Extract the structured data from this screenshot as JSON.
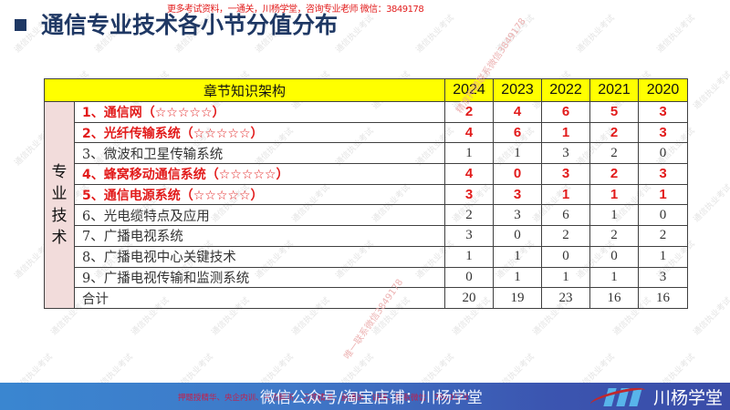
{
  "promo_banner_top": "更多考试资料，一通关，川杨学堂，咨询专业老师 微信：3849178",
  "slide": {
    "title": "通信专业技术各小节分值分布"
  },
  "table": {
    "header_chapter": "章节知识架构",
    "years": [
      "2024",
      "2023",
      "2022",
      "2021",
      "2020"
    ],
    "category_label": "专\n业\n技\n术",
    "rows": [
      {
        "chapter": "1、通信网（☆☆☆☆☆）",
        "highlight": true,
        "values": [
          "2",
          "4",
          "6",
          "5",
          "3"
        ]
      },
      {
        "chapter": "2、光纤传输系统（☆☆☆☆☆）",
        "highlight": true,
        "values": [
          "4",
          "6",
          "1",
          "2",
          "3"
        ]
      },
      {
        "chapter": "3、微波和卫星传输系统",
        "highlight": false,
        "values": [
          "1",
          "1",
          "3",
          "2",
          "0"
        ]
      },
      {
        "chapter": "4、蜂窝移动通信系统（☆☆☆☆☆）",
        "highlight": true,
        "values": [
          "4",
          "0",
          "3",
          "2",
          "3"
        ]
      },
      {
        "chapter": "5、通信电源系统（☆☆☆☆☆）",
        "highlight": true,
        "values": [
          "3",
          "3",
          "1",
          "1",
          "1"
        ]
      },
      {
        "chapter": "6、光电缆特点及应用",
        "highlight": false,
        "values": [
          "2",
          "3",
          "6",
          "1",
          "0"
        ]
      },
      {
        "chapter": "7、广播电视系统",
        "highlight": false,
        "values": [
          "3",
          "0",
          "2",
          "2",
          "2"
        ]
      },
      {
        "chapter": "8、广播电视中心关键技术",
        "highlight": false,
        "values": [
          "1",
          "1",
          "0",
          "0",
          "1"
        ]
      },
      {
        "chapter": "9、广播电视传输和监测系统",
        "highlight": false,
        "values": [
          "0",
          "1",
          "1",
          "1",
          "3"
        ]
      },
      {
        "chapter": "合计",
        "highlight": false,
        "values": [
          "20",
          "19",
          "23",
          "16",
          "16"
        ]
      }
    ]
  },
  "watermarks": {
    "stamp_upper": "精准押题联系微信3849178",
    "stamp_lower": "唯一联系微信3849178",
    "pattern_text": "通信执业考试"
  },
  "footer": {
    "text": "微信公众号/淘宝店铺：川杨学堂",
    "promo": "押题授精华、央企内训、考点解析、习题精讲、直播讲、讲课、联系微信：3849178",
    "brand_name": "川杨学堂"
  },
  "colors": {
    "title": "#1f3864",
    "header_bg": "#ffff00",
    "category_bg": "#f2dcdb",
    "highlight_text": "#e21b1b",
    "footer_bg": "#3f78c8"
  }
}
